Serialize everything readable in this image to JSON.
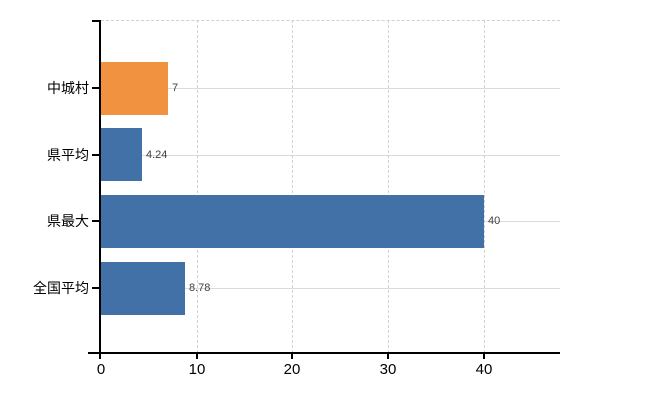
{
  "chart_data": {
    "type": "bar",
    "orientation": "horizontal",
    "title": "",
    "xlabel": "",
    "ylabel": "",
    "categories": [
      "中城村",
      "県平均",
      "県最大",
      "全国平均"
    ],
    "values": [
      7,
      4.24,
      40,
      8.78
    ],
    "value_labels": [
      "7",
      "4.24",
      "40",
      "8.78"
    ],
    "bar_colors": [
      "#f0923f",
      "#4271a8",
      "#4271a8",
      "#4271a8"
    ],
    "x_ticks": [
      0,
      10,
      20,
      30,
      40
    ],
    "x_tick_labels": [
      "0",
      "10",
      "20",
      "30",
      "40"
    ],
    "xlim": [
      0,
      48
    ],
    "legend_position": "none",
    "grid": {
      "vertical_gridlines": "dashed",
      "horizontal_gridlines": "solid",
      "top_border": "dashed"
    },
    "colors": {
      "highlight_bar": "#f0923f",
      "default_bar": "#4271a8",
      "axis": "#000000",
      "gridline": "#d8d8d8",
      "value_label_text": "#404040",
      "tick_label_text": "#000000"
    }
  }
}
